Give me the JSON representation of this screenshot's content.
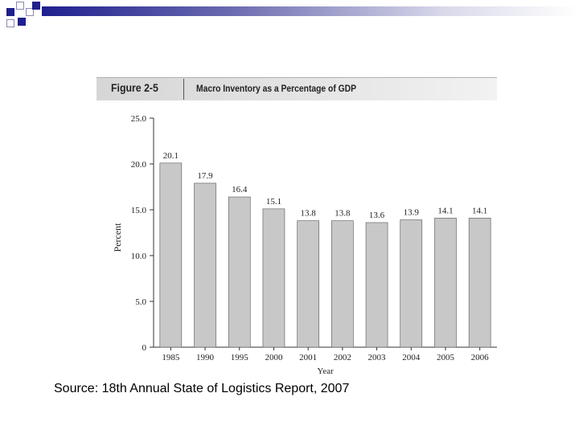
{
  "figure": {
    "label": "Figure 2-5",
    "title": "Macro Inventory as a Percentage of GDP"
  },
  "source": "Source: 18th Annual State of Logistics Report, 2007",
  "colors": {
    "bar": "#c8c8c8",
    "bar_stroke": "#555555",
    "accent": "#1f1f8f"
  },
  "chart_data": {
    "type": "bar",
    "title": "Macro Inventory as a Percentage of GDP",
    "xlabel": "Year",
    "ylabel": "Percent",
    "categories": [
      "1985",
      "1990",
      "1995",
      "2000",
      "2001",
      "2002",
      "2003",
      "2004",
      "2005",
      "2006"
    ],
    "values": [
      20.1,
      17.9,
      16.4,
      15.1,
      13.8,
      13.8,
      13.6,
      13.9,
      14.1,
      14.1
    ],
    "value_labels": [
      "20.1",
      "17.9",
      "16.4",
      "15.1",
      "13.8",
      "13.8",
      "13.6",
      "13.9",
      "14.1",
      "14.1"
    ],
    "ylim": [
      0,
      25
    ],
    "yticks": [
      0,
      5,
      10,
      15,
      20,
      25
    ],
    "ytick_labels": [
      "0",
      "5.0",
      "10.0",
      "15.0",
      "20.0",
      "25.0"
    ],
    "grid": false,
    "legend": "none"
  }
}
